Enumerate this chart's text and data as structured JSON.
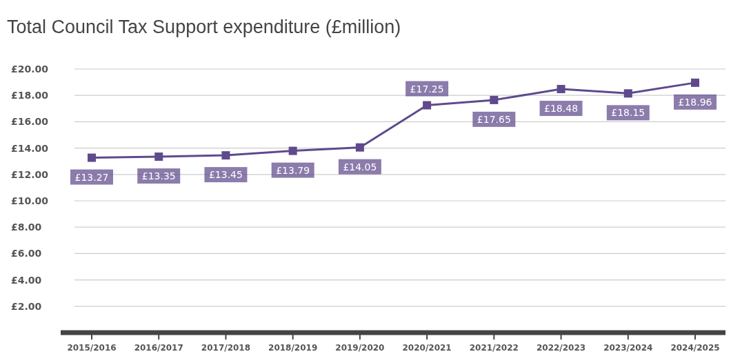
{
  "chart_data": {
    "type": "line",
    "title": "Total Council Tax Support expenditure (£million)",
    "categories": [
      "2015/2016",
      "2016/2017",
      "2017/2018",
      "2018/2019",
      "2019/2020",
      "2020/2021",
      "2021/2022",
      "2022/2023",
      "2023/2024",
      "2024/2025"
    ],
    "series": [
      {
        "color": "#5e4a8c",
        "values": [
          13.27,
          13.35,
          13.45,
          13.79,
          14.05,
          17.25,
          17.65,
          18.48,
          18.15,
          18.96
        ],
        "value_labels": [
          "£13.27",
          "£13.35",
          "£13.45",
          "£13.79",
          "£14.05",
          "£17.25",
          "£17.65",
          "£18.48",
          "£18.15",
          "£18.96"
        ]
      }
    ],
    "ylim": [
      0,
      20
    ],
    "yticks": [
      {
        "value": 2,
        "label": "£2.00"
      },
      {
        "value": 4,
        "label": "£4.00"
      },
      {
        "value": 6,
        "label": "£6.00"
      },
      {
        "value": 8,
        "label": "£8.00"
      },
      {
        "value": 10,
        "label": "£10.00"
      },
      {
        "value": 12,
        "label": "£12.00"
      },
      {
        "value": 14,
        "label": "£14.00"
      },
      {
        "value": 16,
        "label": "£16.00"
      },
      {
        "value": 18,
        "label": "£18.00"
      },
      {
        "value": 20,
        "label": "£20.00"
      }
    ],
    "grid": "y",
    "marker": "square",
    "line_style": "solid"
  }
}
